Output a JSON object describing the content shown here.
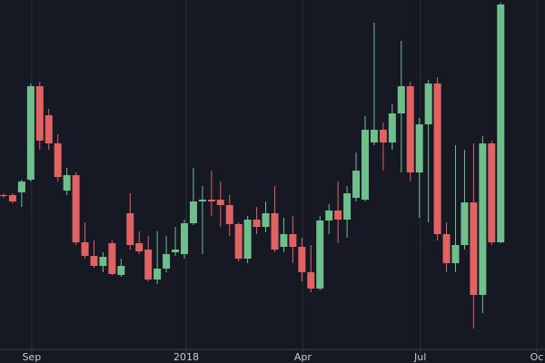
{
  "chart_data": {
    "type": "candlestick",
    "x": [
      0,
      1,
      2,
      3,
      4,
      5,
      6,
      7,
      8,
      9,
      10,
      11,
      12,
      13,
      14,
      15,
      16,
      17,
      18,
      19,
      20,
      21,
      22,
      23,
      24,
      25,
      26,
      27,
      28,
      29,
      30,
      31,
      32,
      33,
      34,
      35,
      36,
      37,
      38,
      39,
      40,
      41,
      42,
      43,
      44,
      45,
      46,
      47,
      48,
      49,
      50,
      51,
      52,
      53,
      54,
      55
    ],
    "open": [
      185,
      185,
      188,
      202,
      305,
      273,
      242,
      190,
      207,
      133,
      118,
      107,
      132,
      97,
      165,
      132,
      125,
      92,
      104,
      122,
      120,
      154,
      178,
      180,
      180,
      174,
      153,
      115,
      158,
      150,
      165,
      128,
      142,
      128,
      100,
      82,
      157,
      168,
      158,
      182,
      180,
      243,
      257,
      243,
      275,
      305,
      210,
      263,
      308,
      142,
      110,
      130,
      177,
      75,
      242,
      133
    ],
    "high": [
      187,
      187,
      202,
      308,
      310,
      280,
      252,
      215,
      210,
      155,
      135,
      122,
      135,
      115,
      187,
      145,
      140,
      145,
      140,
      150,
      158,
      215,
      195,
      212,
      200,
      185,
      155,
      162,
      172,
      178,
      195,
      160,
      162,
      138,
      130,
      162,
      175,
      200,
      195,
      232,
      272,
      375,
      265,
      285,
      355,
      310,
      270,
      312,
      315,
      155,
      240,
      235,
      242,
      250,
      245,
      397
    ],
    "low": [
      182,
      176,
      172,
      200,
      235,
      235,
      200,
      185,
      130,
      115,
      105,
      100,
      97,
      95,
      125,
      120,
      90,
      87,
      100,
      118,
      115,
      152,
      120,
      162,
      150,
      140,
      112,
      110,
      142,
      144,
      122,
      122,
      110,
      90,
      78,
      80,
      142,
      132,
      138,
      178,
      178,
      240,
      212,
      235,
      210,
      200,
      160,
      155,
      135,
      100,
      100,
      125,
      38,
      55,
      130,
      132
    ],
    "close": [
      184,
      178,
      200,
      305,
      245,
      242,
      205,
      207,
      133,
      118,
      107,
      117,
      98,
      107,
      130,
      123,
      92,
      104,
      120,
      125,
      154,
      178,
      180,
      178,
      174,
      153,
      115,
      158,
      150,
      165,
      125,
      142,
      128,
      100,
      82,
      157,
      168,
      158,
      187,
      212,
      257,
      257,
      243,
      275,
      305,
      210,
      263,
      308,
      142,
      110,
      130,
      177,
      75,
      242,
      133,
      395
    ],
    "up_color": "#6fbf8c",
    "down_color": "#e06262",
    "xlim": [
      -0.4,
      59.9
    ],
    "ylim": [
      15,
      400
    ],
    "xticks": [
      {
        "value": 3.1,
        "label": "Sep"
      },
      {
        "value": 20.2,
        "label": "2018"
      },
      {
        "value": 33.1,
        "label": "Apr"
      },
      {
        "value": 46.1,
        "label": "Jul"
      },
      {
        "value": 59,
        "label": "Oc"
      }
    ],
    "grid": true
  }
}
